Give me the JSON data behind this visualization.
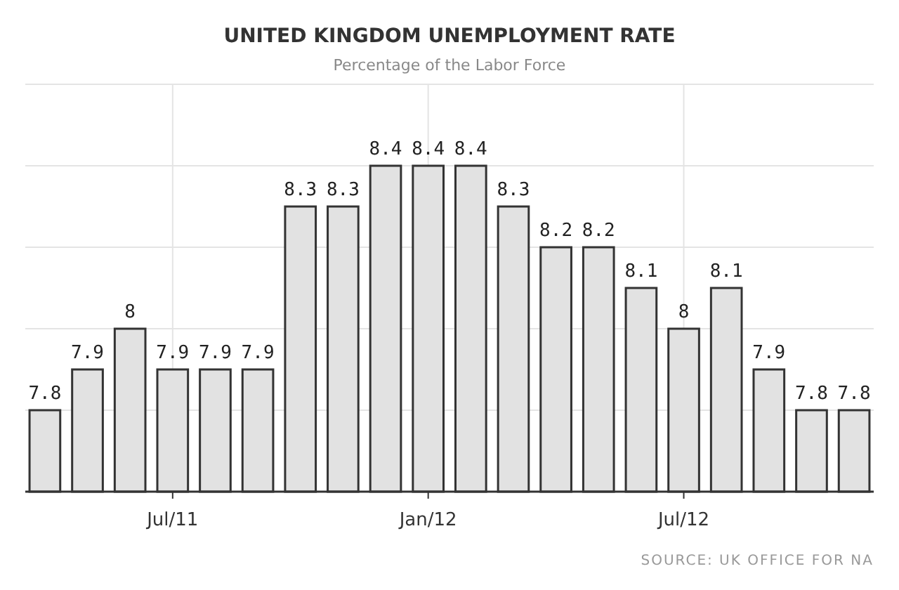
{
  "chart_data": {
    "type": "bar",
    "title": "UNITED KINGDOM UNEMPLOYMENT RATE",
    "subtitle": "Percentage of the Labor Force",
    "categories": [
      null,
      null,
      null,
      "Jul/11",
      null,
      null,
      null,
      null,
      null,
      "Jan/12",
      null,
      null,
      null,
      null,
      null,
      "Jul/12",
      null,
      null,
      null,
      null
    ],
    "values": [
      7.8,
      7.9,
      8,
      7.9,
      7.9,
      7.9,
      8.3,
      8.3,
      8.4,
      8.4,
      8.4,
      8.3,
      8.2,
      8.2,
      8.1,
      8,
      8.1,
      7.9,
      7.8,
      7.8
    ],
    "color": "#e2e2e2",
    "data_labels": true,
    "ylim": [
      7.6,
      8.6
    ],
    "yticks": [
      {
        "value": 7.8,
        "label": null
      },
      {
        "value": 8,
        "label": null
      },
      {
        "value": 8.2,
        "label": null
      },
      {
        "value": 8.4,
        "label": null
      }
    ],
    "tick_labels": "x",
    "grid": true,
    "annotations": [
      "SOURCE: UK OFFICE FOR NA"
    ]
  }
}
